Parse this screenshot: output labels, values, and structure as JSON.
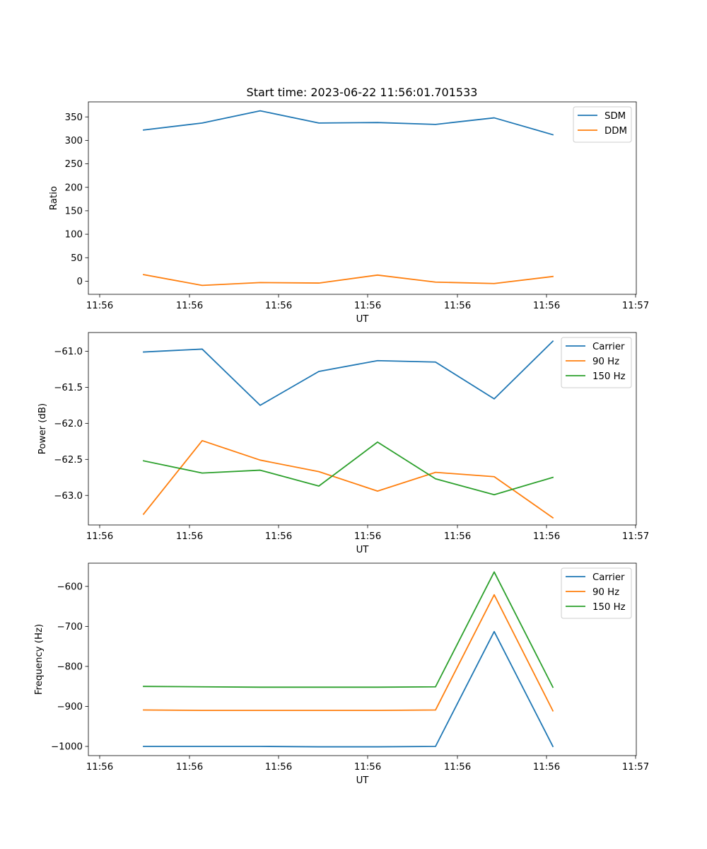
{
  "figure": {
    "title": "Start time: 2023-06-22 11:56:01.701533"
  },
  "colors": {
    "blue": "#1f77b4",
    "orange": "#ff7f0e",
    "green": "#2ca02c"
  },
  "chart_data": [
    {
      "type": "line",
      "title": "Start time: 2023-06-22 11:56:01.701533",
      "xlabel": "UT",
      "ylabel": "Ratio",
      "x_tick_labels": [
        "11:56",
        "11:56",
        "11:56",
        "11:56",
        "11:56",
        "11:56",
        "11:57"
      ],
      "y_ticks": [
        0,
        50,
        100,
        150,
        200,
        250,
        300,
        350
      ],
      "y_tick_labels": [
        "0",
        "50",
        "100",
        "150",
        "200",
        "250",
        "300",
        "350"
      ],
      "ylim": [
        -28,
        382
      ],
      "legend_position": "top-right",
      "grid": false,
      "series": [
        {
          "name": "SDM",
          "color": "#1f77b4",
          "values": [
            322,
            337,
            363,
            337,
            338,
            334,
            348,
            312
          ]
        },
        {
          "name": "DDM",
          "color": "#ff7f0e",
          "values": [
            14,
            -9,
            -3,
            -4,
            13,
            -2,
            -5,
            10
          ]
        }
      ]
    },
    {
      "type": "line",
      "xlabel": "UT",
      "ylabel": "Power (dB)",
      "x_tick_labels": [
        "11:56",
        "11:56",
        "11:56",
        "11:56",
        "11:56",
        "11:56",
        "11:57"
      ],
      "y_ticks": [
        -63.0,
        -62.5,
        -62.0,
        -61.5,
        -61.0
      ],
      "y_tick_labels": [
        "−63.0",
        "−62.5",
        "−62.0",
        "−61.5",
        "−61.0"
      ],
      "ylim": [
        -63.41,
        -60.74
      ],
      "legend_position": "top-right",
      "grid": false,
      "series": [
        {
          "name": "Carrier",
          "color": "#1f77b4",
          "values": [
            -61.01,
            -60.97,
            -61.75,
            -61.28,
            -61.13,
            -61.15,
            -61.66,
            -60.86
          ]
        },
        {
          "name": "90 Hz",
          "color": "#ff7f0e",
          "values": [
            -63.26,
            -62.24,
            -62.51,
            -62.67,
            -62.94,
            -62.68,
            -62.74,
            -63.31
          ]
        },
        {
          "name": "150 Hz",
          "color": "#2ca02c",
          "values": [
            -62.52,
            -62.69,
            -62.65,
            -62.87,
            -62.26,
            -62.77,
            -62.99,
            -62.75
          ]
        }
      ]
    },
    {
      "type": "line",
      "xlabel": "UT",
      "ylabel": "Frequency (Hz)",
      "x_tick_labels": [
        "11:56",
        "11:56",
        "11:56",
        "11:56",
        "11:56",
        "11:56",
        "11:57"
      ],
      "y_ticks": [
        -1000,
        -900,
        -800,
        -700,
        -600
      ],
      "y_tick_labels": [
        "−1000",
        "−900",
        "−800",
        "−700",
        "−600"
      ],
      "ylim": [
        -1023,
        -542
      ],
      "legend_position": "top-right",
      "grid": false,
      "series": [
        {
          "name": "Carrier",
          "color": "#1f77b4",
          "values": [
            -1000,
            -1000,
            -1000,
            -1001,
            -1001,
            -1000,
            -713,
            -1000
          ]
        },
        {
          "name": "90 Hz",
          "color": "#ff7f0e",
          "values": [
            -909,
            -910,
            -910,
            -910,
            -910,
            -909,
            -621,
            -911
          ]
        },
        {
          "name": "150 Hz",
          "color": "#2ca02c",
          "values": [
            -850,
            -851,
            -852,
            -852,
            -852,
            -851,
            -564,
            -852
          ]
        }
      ]
    }
  ]
}
